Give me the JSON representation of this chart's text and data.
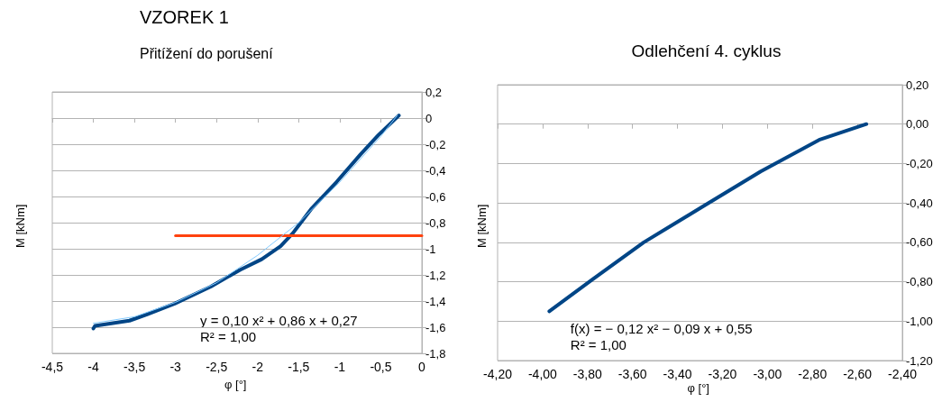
{
  "chart_data": [
    {
      "type": "line",
      "title": "VZOREK 1",
      "subtitle": "Přitížení do porušení",
      "xlabel": "φ [°]",
      "ylabel": "M [kNm]",
      "grid": "y",
      "marker": "none",
      "line_style": "solid",
      "xlim": [
        -4.5,
        0
      ],
      "xticks": [
        {
          "value": -4.5,
          "label": "-4,5"
        },
        -4,
        {
          "value": -3.5,
          "label": "-3,5"
        },
        -3,
        {
          "value": -2.5,
          "label": "-2,5"
        },
        -2,
        {
          "value": -1.5,
          "label": "-1,5"
        },
        -1,
        {
          "value": -0.5,
          "label": "-0,5"
        },
        0
      ],
      "ylim": [
        -1.8,
        0.2
      ],
      "yticks": [
        {
          "value": 0.2,
          "label": "0,2"
        },
        0,
        {
          "value": -0.2,
          "label": "-0,2"
        },
        {
          "value": -0.4,
          "label": "-0,4"
        },
        {
          "value": -0.6,
          "label": "-0,6"
        },
        {
          "value": -0.8,
          "label": "-0,8"
        },
        -1,
        {
          "value": -1.2,
          "label": "-1,2"
        },
        {
          "value": -1.4,
          "label": "-1,4"
        },
        {
          "value": -1.6,
          "label": "-1,6"
        },
        {
          "value": -1.8,
          "label": "-1,8"
        }
      ],
      "series": [
        {
          "color": "#004586",
          "x": [
            -4,
            -3.98,
            -3.56,
            -3.34,
            -3.01,
            -2.57,
            -2.21,
            -1.95,
            -1.72,
            -1.57,
            -1.34,
            -1.04,
            -0.75,
            -0.53,
            -0.28
          ],
          "values": [
            -1.61,
            -1.59,
            -1.55,
            -1.5,
            -1.42,
            -1.29,
            -1.16,
            -1.08,
            -0.98,
            -0.88,
            -0.69,
            -0.49,
            -0.28,
            -0.13,
            0.02
          ]
        },
        {
          "type": "line",
          "color": "#83caff",
          "x": [
            -4,
            -3.5,
            -3,
            -2.5,
            -2,
            -1.5,
            -1,
            -0.5,
            -0.3
          ],
          "values": [
            -1.57,
            -1.52,
            -1.41,
            -1.26,
            -1.05,
            -0.8,
            -0.49,
            -0.14,
            0.02
          ]
        },
        {
          "color": "#ff420e",
          "x": [
            -3,
            0
          ],
          "values": [
            -0.9,
            -0.9
          ]
        }
      ],
      "annotations": [
        "y = 0,10 x² + 0,86 x + 0,27\nR² = 1,00"
      ]
    },
    {
      "type": "line",
      "title": "Odlehčení 4. cyklus",
      "xlabel": "φ [°]",
      "ylabel": "M [kNm]",
      "grid": "y",
      "marker": "none",
      "line_style": "solid",
      "xlim": [
        -4.2,
        -2.4
      ],
      "xticks": [
        {
          "value": -4.2,
          "label": "-4,20"
        },
        {
          "value": -4,
          "label": "-4,00"
        },
        {
          "value": -3.8,
          "label": "-3,80"
        },
        {
          "value": -3.6,
          "label": "-3,60"
        },
        {
          "value": -3.4,
          "label": "-3,40"
        },
        {
          "value": -3.2,
          "label": "-3,20"
        },
        {
          "value": -3,
          "label": "-3,00"
        },
        {
          "value": -2.8,
          "label": "-2,80"
        },
        {
          "value": -2.6,
          "label": "-2,60"
        },
        {
          "value": -2.4,
          "label": "-2,40"
        }
      ],
      "ylim": [
        -1.2,
        0.2
      ],
      "yticks": [
        {
          "value": 0.2,
          "label": "0,20"
        },
        {
          "value": 0,
          "label": "0,00"
        },
        {
          "value": -0.2,
          "label": "-0,20"
        },
        {
          "value": -0.4,
          "label": "-0,40"
        },
        {
          "value": -0.6,
          "label": "-0,60"
        },
        {
          "value": -0.8,
          "label": "-0,80"
        },
        {
          "value": -1,
          "label": "-1,00"
        },
        {
          "value": -1.2,
          "label": "-1,20"
        }
      ],
      "series": [
        {
          "color": "#004586",
          "x": [
            -3.97,
            -3.78,
            -3.55,
            -3.29,
            -3.03,
            -2.9,
            -2.77,
            -2.56
          ],
          "values": [
            -0.95,
            -0.79,
            -0.6,
            -0.42,
            -0.24,
            -0.16,
            -0.08,
            0
          ]
        }
      ],
      "annotations": [
        "f(x) = − 0,12 x² − 0,09 x + 0,55\nR² = 1,00"
      ]
    }
  ]
}
